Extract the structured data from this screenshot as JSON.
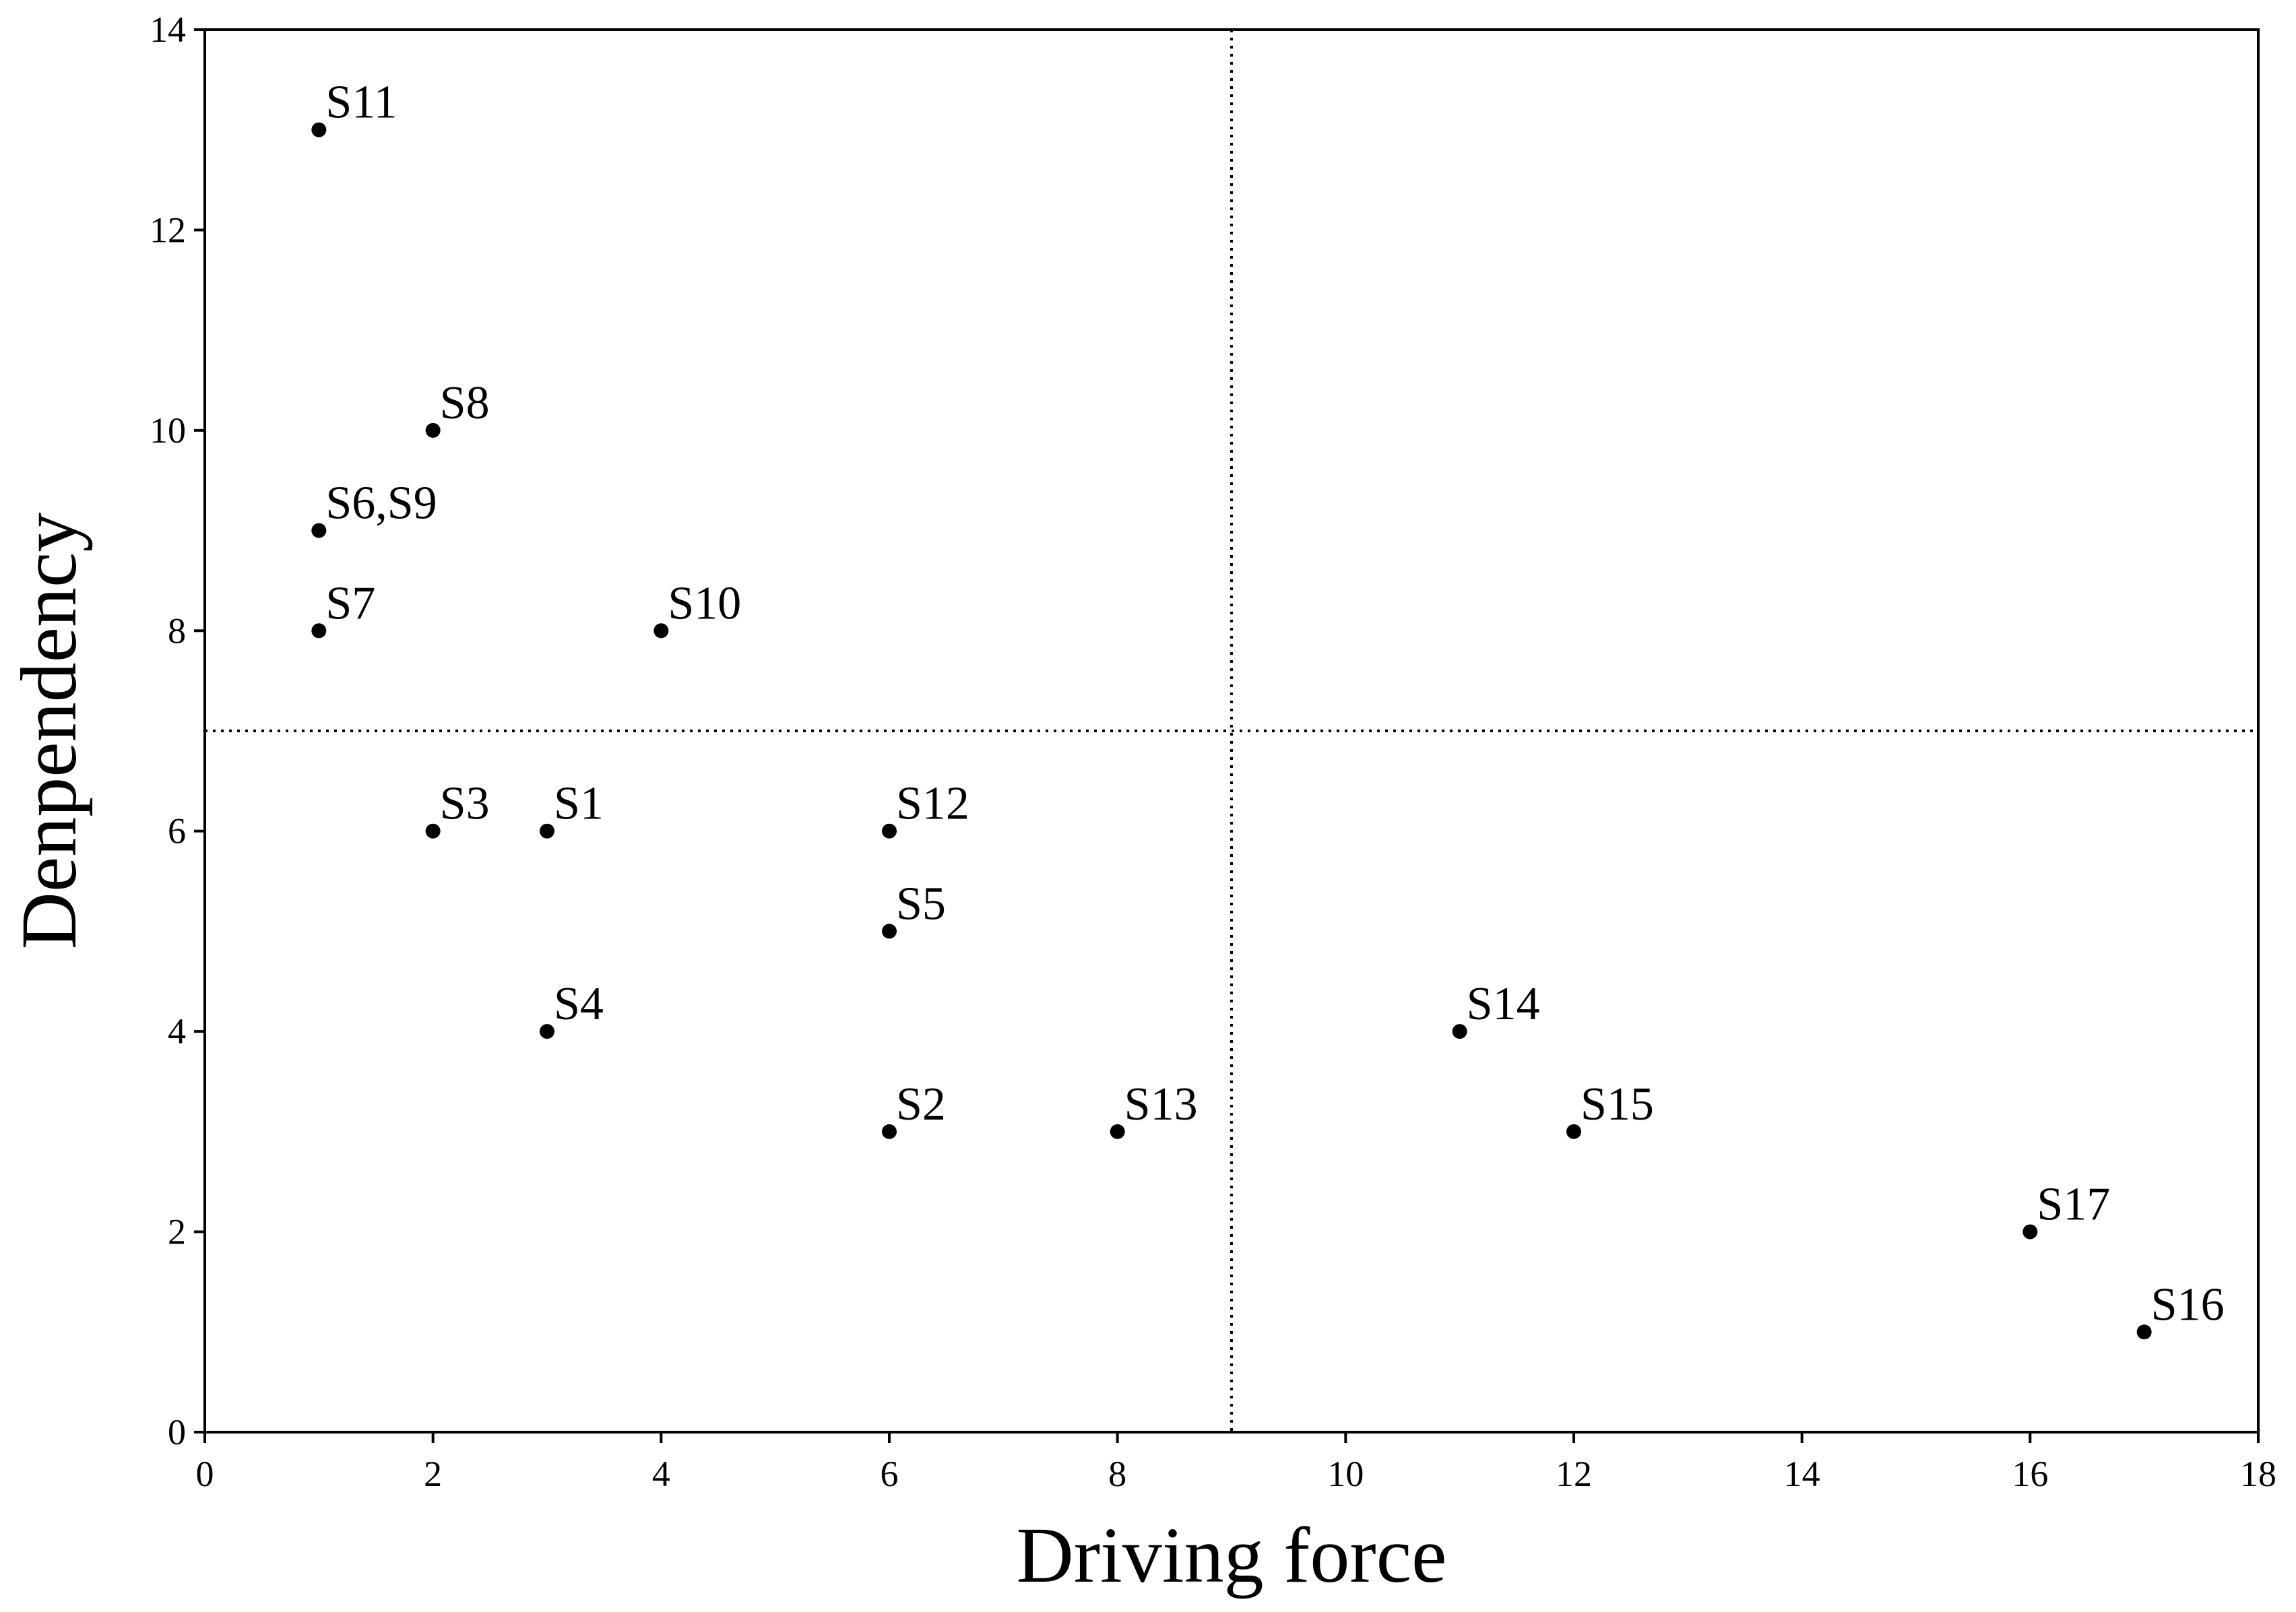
{
  "chart_data": {
    "type": "scatter",
    "xlabel": "Driving force",
    "ylabel": "Denpendency",
    "xlim": [
      0,
      18
    ],
    "ylim": [
      0,
      14
    ],
    "xticks": [
      0,
      2,
      4,
      6,
      8,
      10,
      12,
      14,
      16,
      18
    ],
    "yticks": [
      0,
      2,
      4,
      6,
      8,
      10,
      12,
      14
    ],
    "grid": false,
    "reference_lines": {
      "x": 9,
      "y": 7,
      "style": "dotted"
    },
    "points": [
      {
        "label": "S11",
        "x": 1,
        "y": 13
      },
      {
        "label": "S8",
        "x": 2,
        "y": 10
      },
      {
        "label": "S6,S9",
        "x": 1,
        "y": 9
      },
      {
        "label": "S7",
        "x": 1,
        "y": 8
      },
      {
        "label": "S10",
        "x": 4,
        "y": 8
      },
      {
        "label": "S3",
        "x": 2,
        "y": 6
      },
      {
        "label": "S1",
        "x": 3,
        "y": 6
      },
      {
        "label": "S12",
        "x": 6,
        "y": 6
      },
      {
        "label": "S5",
        "x": 6,
        "y": 5
      },
      {
        "label": "S4",
        "x": 3,
        "y": 4
      },
      {
        "label": "S14",
        "x": 11,
        "y": 4
      },
      {
        "label": "S2",
        "x": 6,
        "y": 3
      },
      {
        "label": "S13",
        "x": 8,
        "y": 3
      },
      {
        "label": "S15",
        "x": 12,
        "y": 3
      },
      {
        "label": "S17",
        "x": 16,
        "y": 2
      },
      {
        "label": "S16",
        "x": 17,
        "y": 1
      }
    ]
  }
}
